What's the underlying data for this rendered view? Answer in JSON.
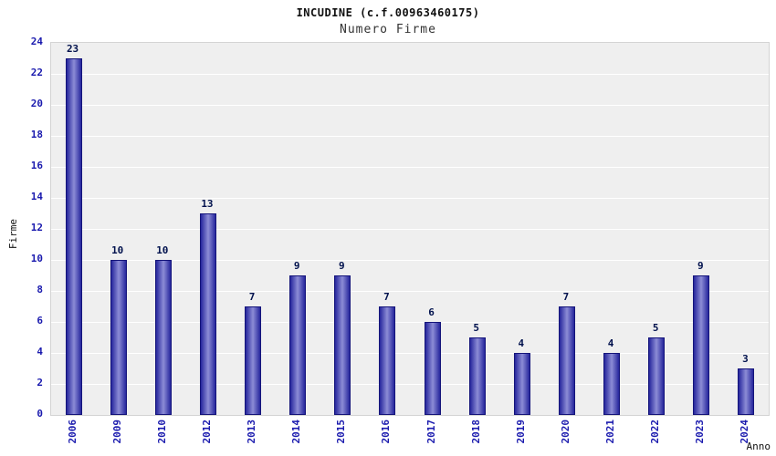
{
  "header": {
    "title": "INCUDINE (c.f.00963460175)",
    "subtitle": "Numero Firme"
  },
  "chart_data": {
    "type": "bar",
    "title": "INCUDINE (c.f.00963460175)",
    "subtitle": "Numero Firme",
    "xlabel": "Anno",
    "ylabel": "Firme",
    "categories": [
      "2006",
      "2009",
      "2010",
      "2012",
      "2013",
      "2014",
      "2015",
      "2016",
      "2017",
      "2018",
      "2019",
      "2020",
      "2021",
      "2022",
      "2023",
      "2024"
    ],
    "values": [
      23,
      10,
      10,
      13,
      7,
      9,
      9,
      7,
      6,
      5,
      4,
      7,
      4,
      5,
      9,
      3
    ],
    "ylim": [
      0,
      24
    ],
    "ytick_step": 2,
    "grid": true,
    "legend": "none",
    "colors": {
      "bar_edge": "#14147a",
      "bar_gradient_dark": "#26269c",
      "bar_gradient_light": "#8c8cd6",
      "tick_label": "#1a1aae",
      "value_label": "#00114d",
      "plot_background": "#efefef",
      "gridline": "#ffffff"
    }
  }
}
